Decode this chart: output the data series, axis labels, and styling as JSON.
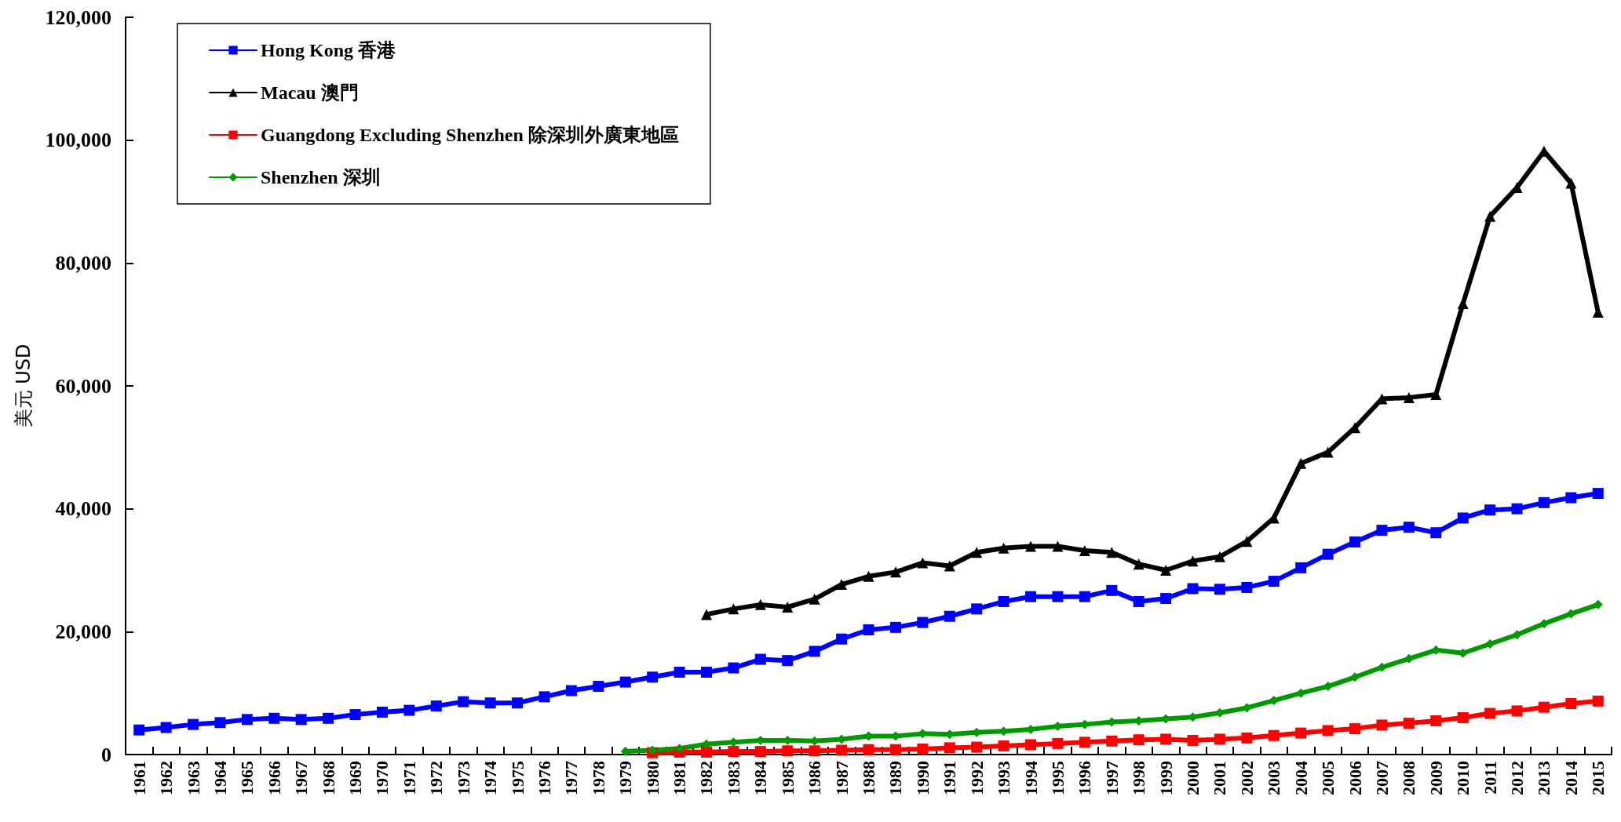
{
  "chart_data": {
    "type": "line",
    "ylabel": "美元 USD",
    "categories": [
      "1961",
      "1962",
      "1963",
      "1964",
      "1965",
      "1966",
      "1967",
      "1968",
      "1969",
      "1970",
      "1971",
      "1972",
      "1973",
      "1974",
      "1975",
      "1976",
      "1977",
      "1978",
      "1979",
      "1980",
      "1981",
      "1982",
      "1983",
      "1984",
      "1985",
      "1986",
      "1987",
      "1988",
      "1989",
      "1990",
      "1991",
      "1992",
      "1993",
      "1994",
      "1995",
      "1996",
      "1997",
      "1998",
      "1999",
      "2000",
      "2001",
      "2002",
      "2003",
      "2004",
      "2005",
      "2006",
      "2007",
      "2008",
      "2009",
      "2010",
      "2011",
      "2012",
      "2013",
      "2014",
      "2015"
    ],
    "ylim": [
      0,
      120000
    ],
    "yticks": [
      {
        "value": 0,
        "label": "0"
      },
      {
        "value": 20000,
        "label": "20,000"
      },
      {
        "value": 40000,
        "label": "40,000"
      },
      {
        "value": 60000,
        "label": "60,000"
      },
      {
        "value": 80000,
        "label": "80,000"
      },
      {
        "value": 100000,
        "label": "100,000"
      },
      {
        "value": 120000,
        "label": "120,000"
      }
    ],
    "grid": false,
    "legend": "top left",
    "line_style": "solid",
    "series": [
      {
        "name": "Hong Kong 香港",
        "color": "#0000ff",
        "marker": "square",
        "values": [
          4000,
          4400,
          4900,
          5200,
          5700,
          5900,
          5700,
          5900,
          6500,
          6900,
          7200,
          7900,
          8600,
          8400,
          8400,
          9400,
          10400,
          11100,
          11800,
          12600,
          13400,
          13400,
          14100,
          15500,
          15300,
          16800,
          18800,
          20300,
          20700,
          21500,
          22500,
          23700,
          24900,
          25700,
          25700,
          25700,
          26700,
          24900,
          25400,
          27000,
          26900,
          27200,
          28200,
          30400,
          32600,
          34600,
          36500,
          37000,
          36100,
          38500,
          39800,
          40000,
          41000,
          41800,
          42500
        ]
      },
      {
        "name": "Macau 澳門",
        "color": "#000000",
        "marker": "triangle",
        "values": [
          null,
          null,
          null,
          null,
          null,
          null,
          null,
          null,
          null,
          null,
          null,
          null,
          null,
          null,
          null,
          null,
          null,
          null,
          null,
          null,
          null,
          22800,
          23700,
          24400,
          24000,
          25300,
          27700,
          29000,
          29700,
          31200,
          30700,
          32900,
          33600,
          33900,
          33900,
          33200,
          32900,
          31000,
          30000,
          31500,
          32200,
          34700,
          38500,
          47400,
          49200,
          53200,
          57900,
          58100,
          58600,
          73400,
          87600,
          92300,
          98200,
          93000,
          72000
        ]
      },
      {
        "name": "Guangdong Excluding Shenzhen 除深圳外廣東地區",
        "color": "#ff0000",
        "marker": "square",
        "values": [
          null,
          null,
          null,
          null,
          null,
          null,
          null,
          null,
          null,
          null,
          null,
          null,
          null,
          null,
          null,
          null,
          null,
          null,
          null,
          300,
          400,
          400,
          500,
          500,
          600,
          600,
          700,
          800,
          800,
          900,
          1100,
          1200,
          1400,
          1600,
          1800,
          2000,
          2200,
          2400,
          2500,
          2300,
          2500,
          2700,
          3100,
          3500,
          3900,
          4200,
          4800,
          5100,
          5500,
          6000,
          6700,
          7100,
          7700,
          8300,
          8700
        ]
      },
      {
        "name": "Shenzhen 深圳",
        "color": "#009900",
        "marker": "diamond",
        "values": [
          null,
          null,
          null,
          null,
          null,
          null,
          null,
          null,
          null,
          null,
          null,
          null,
          null,
          null,
          null,
          null,
          null,
          null,
          500,
          700,
          1000,
          1700,
          2000,
          2300,
          2300,
          2200,
          2500,
          3000,
          3000,
          3400,
          3300,
          3600,
          3800,
          4100,
          4600,
          4900,
          5300,
          5500,
          5800,
          6100,
          6800,
          7600,
          8800,
          10000,
          11100,
          12600,
          14200,
          15600,
          17000,
          16500,
          18000,
          19500,
          21300,
          22900,
          24400
        ]
      }
    ]
  }
}
